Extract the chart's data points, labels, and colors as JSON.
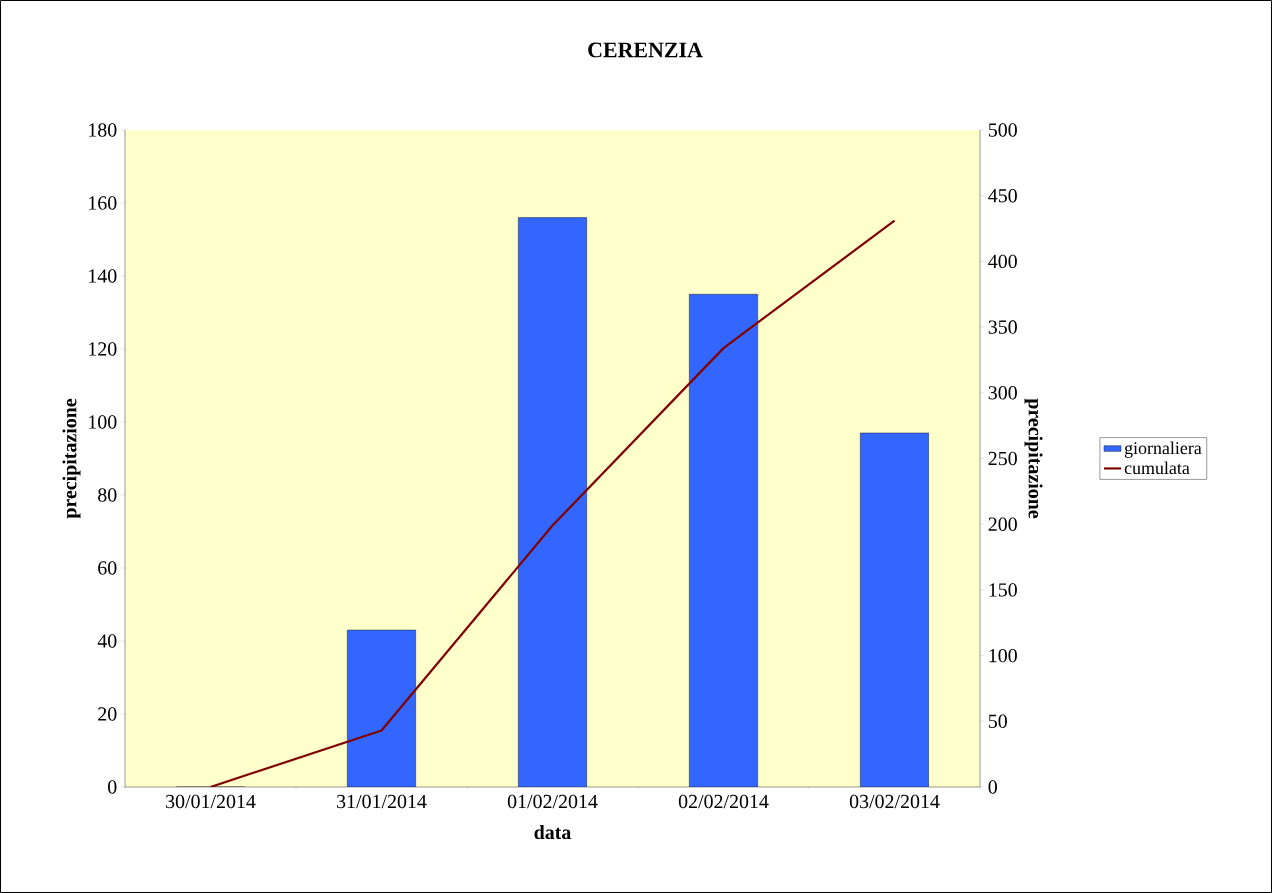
{
  "chart_data": {
    "type": "bar",
    "title": "CERENZIA",
    "xlabel": "data",
    "ylabel": "precipitazione",
    "y2label": "precipitazione",
    "categories": [
      "30/01/2014",
      "31/01/2014",
      "01/02/2014",
      "02/02/2014",
      "03/02/2014"
    ],
    "series": [
      {
        "name": "giornaliera",
        "color": "#3366ff",
        "values": [
          0,
          43,
          156,
          135,
          97
        ]
      },
      {
        "name": "cumulata",
        "type": "line",
        "axis": "y2",
        "color": "#800000",
        "values": [
          0,
          43,
          199,
          334,
          431
        ]
      }
    ],
    "ylim": [
      0,
      180
    ],
    "yticks": [
      0,
      20,
      40,
      60,
      80,
      100,
      120,
      140,
      160,
      180
    ],
    "y2lim": [
      0,
      500
    ],
    "y2ticks": [
      0,
      50,
      100,
      150,
      200,
      250,
      300,
      350,
      400,
      450,
      500
    ],
    "legend": "right",
    "grid": false,
    "marker": "none"
  }
}
